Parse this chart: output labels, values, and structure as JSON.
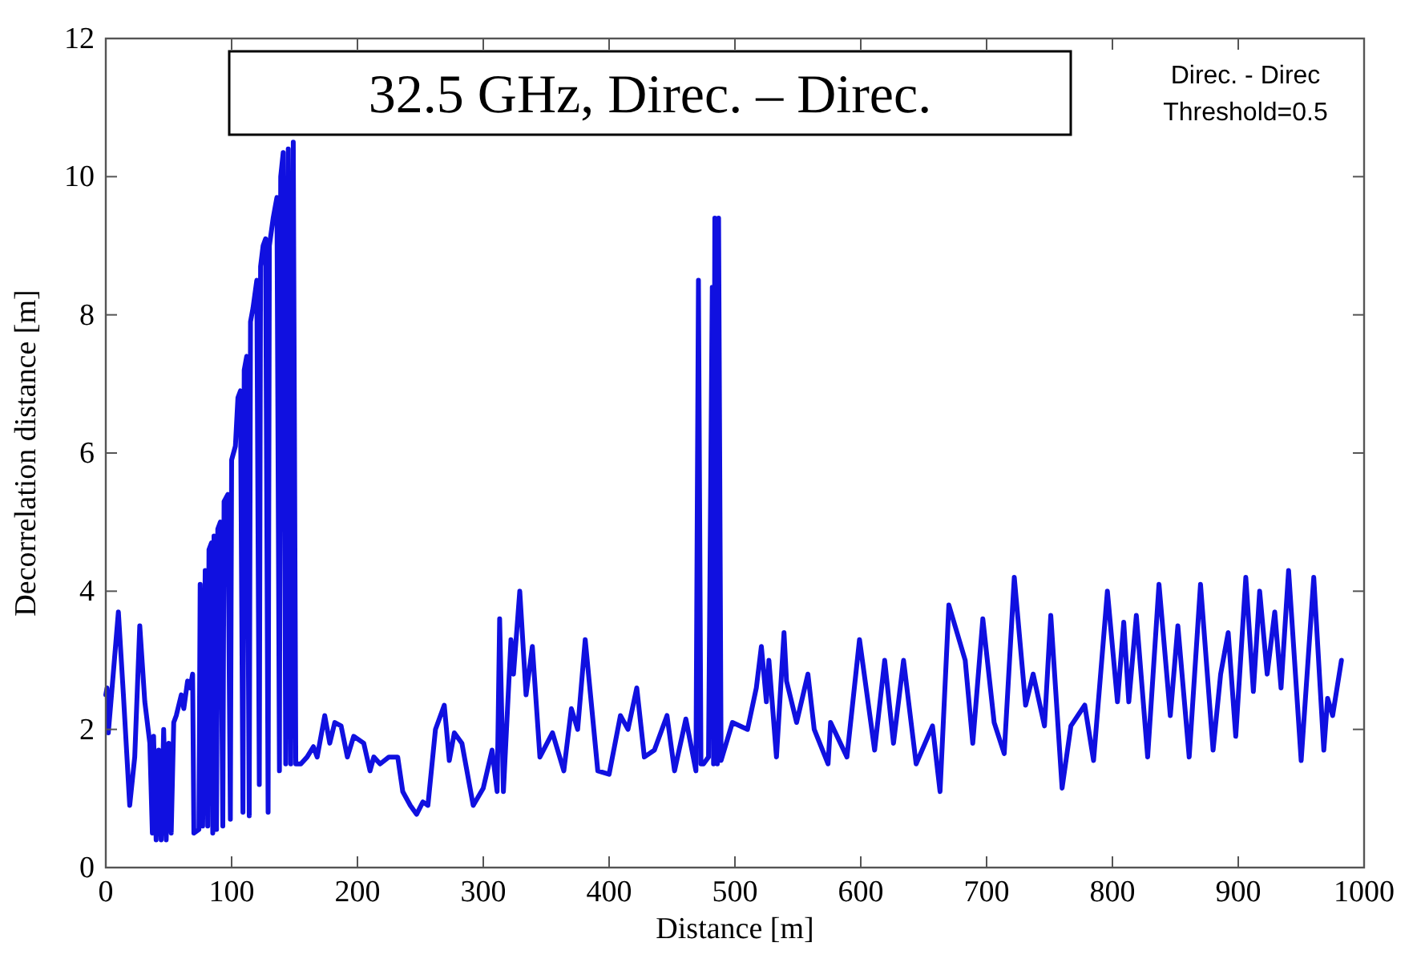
{
  "chart_data": {
    "type": "line",
    "title": "32.5 GHz, Direc. – Direc.",
    "xlabel": "Distance [m]",
    "ylabel": "Decorrelation distance [m]",
    "annotations": [
      "Direc. - Direc",
      "Threshold=0.5"
    ],
    "xlim": [
      0,
      1000
    ],
    "ylim": [
      0,
      12
    ],
    "xticks": [
      0,
      100,
      200,
      300,
      400,
      500,
      600,
      700,
      800,
      900,
      1000
    ],
    "yticks": [
      0,
      2,
      4,
      6,
      8,
      10,
      12
    ],
    "grid": false,
    "line_style": "solid",
    "series": [
      {
        "color": "#1010e0",
        "x": [
          0,
          1,
          2,
          5,
          10,
          14,
          19,
          23,
          27,
          31,
          35,
          37,
          38,
          40,
          42,
          44,
          46,
          48,
          50,
          52,
          54,
          56,
          60,
          62,
          65,
          67,
          69,
          70,
          74,
          75,
          77,
          79,
          81,
          82,
          84,
          85,
          86,
          88,
          89,
          91,
          93,
          94,
          97,
          99,
          100,
          103,
          105,
          107,
          109,
          110,
          112,
          114,
          115,
          117,
          120,
          122,
          123,
          125,
          127,
          129,
          130,
          133,
          136,
          138,
          139,
          141,
          143,
          145,
          147,
          149,
          151,
          155,
          160,
          165,
          168,
          174,
          178,
          182,
          187,
          192,
          197,
          205,
          210,
          213,
          218,
          225,
          232,
          236,
          242,
          247,
          252,
          256,
          262,
          269,
          273,
          277,
          283,
          292,
          300,
          307,
          311,
          313,
          316,
          322,
          324,
          329,
          334,
          339,
          345,
          355,
          364,
          370,
          375,
          381,
          391,
          400,
          409,
          415,
          422,
          428,
          436,
          446,
          452,
          461,
          469,
          471,
          473,
          475,
          479,
          482,
          483,
          484,
          486,
          487,
          489,
          498,
          510,
          517,
          521,
          525,
          527,
          533,
          539,
          541,
          549,
          558,
          563,
          574,
          576,
          589,
          599,
          611,
          619,
          626,
          634,
          644,
          657,
          663,
          670,
          683,
          689,
          697,
          706,
          714,
          722,
          731,
          737,
          746,
          751,
          760,
          767,
          778,
          785,
          796,
          804,
          809,
          813,
          819,
          828,
          837,
          846,
          852,
          861,
          870,
          880,
          886,
          892,
          898,
          906,
          912,
          917,
          923,
          929,
          934,
          940,
          950,
          960,
          968,
          971,
          975,
          982
        ],
        "values": [
          2.5,
          2.6,
          1.95,
          2.6,
          3.7,
          2.5,
          0.9,
          1.6,
          3.5,
          2.4,
          1.8,
          0.5,
          1.9,
          0.4,
          1.7,
          0.4,
          2.0,
          0.4,
          1.8,
          0.5,
          2.1,
          2.2,
          2.5,
          2.3,
          2.7,
          2.6,
          2.8,
          0.5,
          0.55,
          4.1,
          0.6,
          4.3,
          0.6,
          4.6,
          4.7,
          0.5,
          4.8,
          0.55,
          4.9,
          5.0,
          0.6,
          5.3,
          5.4,
          0.7,
          5.9,
          6.1,
          6.8,
          6.9,
          0.8,
          7.2,
          7.4,
          0.75,
          7.9,
          8.1,
          8.5,
          1.2,
          8.7,
          9.0,
          9.1,
          0.8,
          9.0,
          9.4,
          9.7,
          1.4,
          10.0,
          10.35,
          1.5,
          10.4,
          1.5,
          10.5,
          1.5,
          1.5,
          1.6,
          1.75,
          1.6,
          2.2,
          1.8,
          2.1,
          2.05,
          1.6,
          1.9,
          1.8,
          1.4,
          1.6,
          1.5,
          1.6,
          1.6,
          1.1,
          0.9,
          0.77,
          0.95,
          0.9,
          2.0,
          2.35,
          1.55,
          1.95,
          1.8,
          0.9,
          1.15,
          1.7,
          1.1,
          3.6,
          1.1,
          3.3,
          2.8,
          4.0,
          2.5,
          3.2,
          1.6,
          1.95,
          1.4,
          2.3,
          2.0,
          3.3,
          1.4,
          1.35,
          2.2,
          2.0,
          2.6,
          1.6,
          1.7,
          2.2,
          1.4,
          2.15,
          1.4,
          8.5,
          1.5,
          1.5,
          1.6,
          8.4,
          1.5,
          9.4,
          1.5,
          9.4,
          1.55,
          2.1,
          2.0,
          2.6,
          3.2,
          2.4,
          3.0,
          1.6,
          3.4,
          2.7,
          2.1,
          2.8,
          2.0,
          1.5,
          2.1,
          1.6,
          3.3,
          1.7,
          3.0,
          1.8,
          3.0,
          1.5,
          2.05,
          1.1,
          3.8,
          3.0,
          1.8,
          3.6,
          2.1,
          1.65,
          4.2,
          2.35,
          2.8,
          2.05,
          3.65,
          1.15,
          2.05,
          2.35,
          1.55,
          4.0,
          2.4,
          3.55,
          2.4,
          3.65,
          1.6,
          4.1,
          2.2,
          3.5,
          1.6,
          4.1,
          1.7,
          2.8,
          3.4,
          1.9,
          4.2,
          2.55,
          4.0,
          2.8,
          3.7,
          2.6,
          4.3,
          1.55,
          4.2,
          1.7,
          2.45,
          2.2,
          3.0
        ]
      }
    ]
  }
}
